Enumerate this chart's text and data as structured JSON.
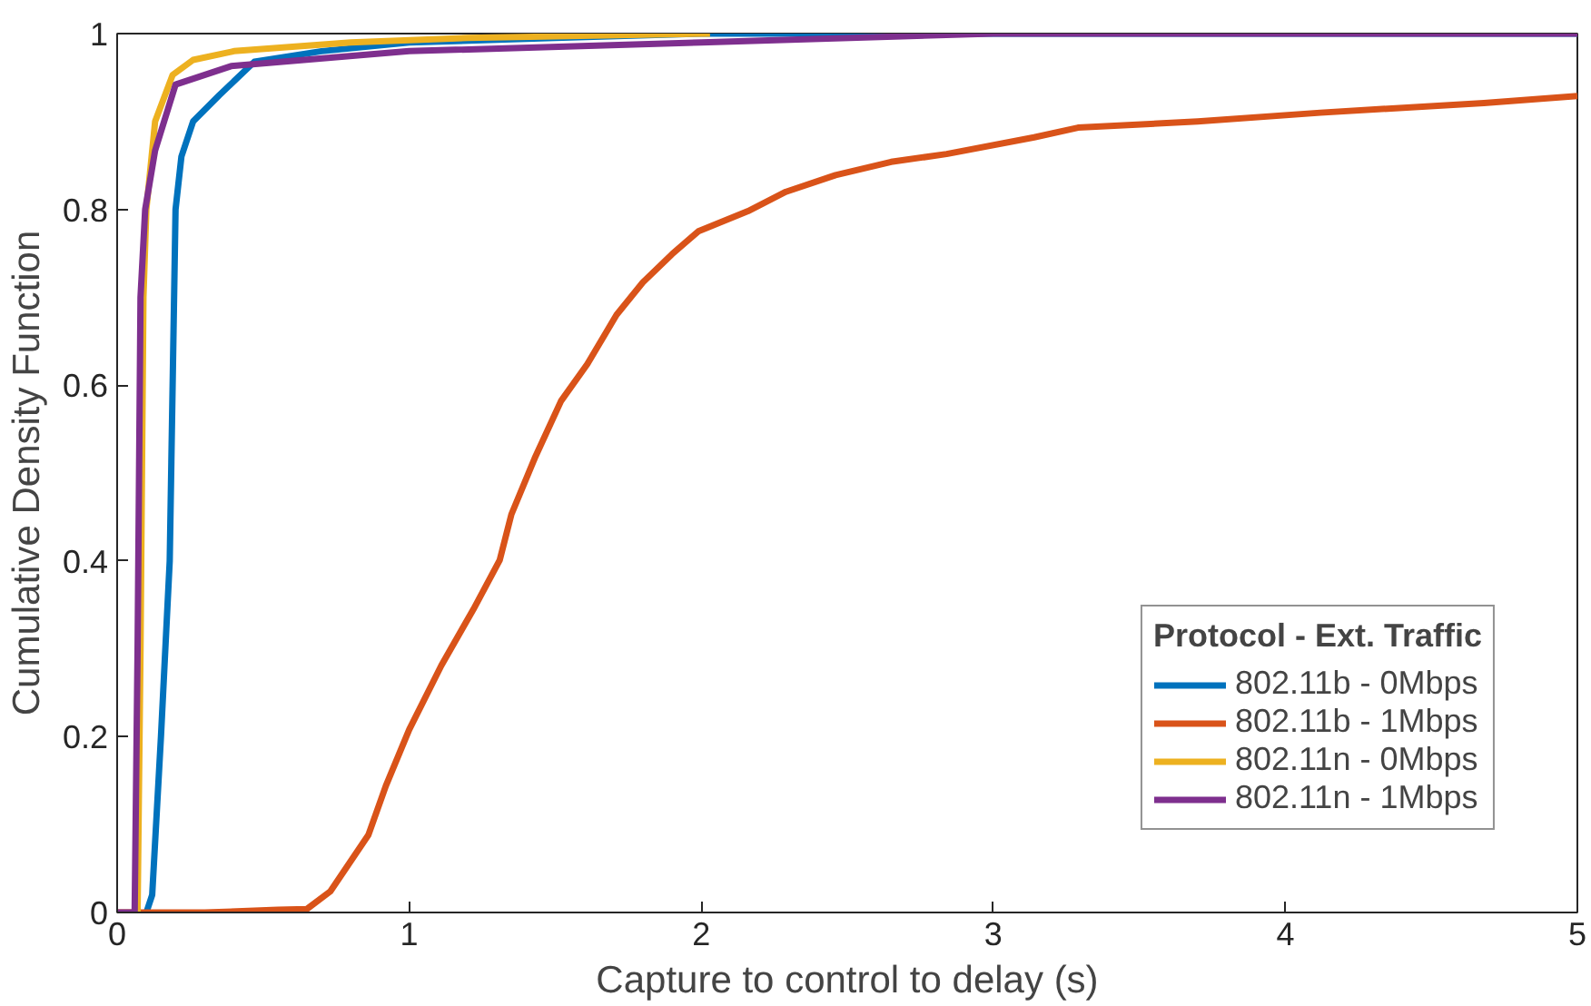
{
  "chart_data": {
    "type": "line",
    "xlabel": "Capture to control to delay (s)",
    "ylabel": "Cumulative Density Function",
    "legend_title": "Protocol - Ext. Traffic",
    "xlim": [
      0,
      5
    ],
    "ylim": [
      0,
      1
    ],
    "xticks": [
      0,
      1,
      2,
      3,
      4,
      5
    ],
    "yticks": [
      0,
      0.2,
      0.4,
      0.6,
      0.8,
      1
    ],
    "grid": false,
    "legend": "bottom right",
    "line_style": "solid",
    "series": [
      {
        "name": "802.11b - 0Mbps",
        "color": "#0072bd",
        "x": [
          0.1,
          0.12,
          0.15,
          0.18,
          0.2,
          0.22,
          0.26,
          0.35,
          0.47,
          0.7,
          1.0,
          1.5,
          2.0,
          3.0,
          5.0
        ],
        "values": [
          0,
          0.02,
          0.2,
          0.4,
          0.8,
          0.86,
          0.9,
          0.93,
          0.968,
          0.98,
          0.99,
          0.995,
          1.0,
          1.0,
          1.0
        ]
      },
      {
        "name": "802.11b - 1Mbps",
        "color": "#d95319",
        "x": [
          0,
          0.3,
          0.55,
          0.65,
          0.73,
          0.86,
          0.92,
          1.0,
          1.11,
          1.22,
          1.31,
          1.35,
          1.43,
          1.52,
          1.61,
          1.71,
          1.8,
          1.9,
          1.99,
          2.16,
          2.29,
          2.46,
          2.65,
          2.84,
          3.14,
          3.29,
          3.7,
          4.12,
          4.68,
          5.0
        ],
        "values": [
          0,
          0,
          0.003,
          0.004,
          0.024,
          0.088,
          0.144,
          0.208,
          0.281,
          0.345,
          0.401,
          0.453,
          0.517,
          0.582,
          0.624,
          0.68,
          0.717,
          0.749,
          0.775,
          0.798,
          0.82,
          0.839,
          0.854,
          0.863,
          0.882,
          0.893,
          0.9,
          0.91,
          0.921,
          0.929
        ]
      },
      {
        "name": "802.11n - 0Mbps",
        "color": "#edb120",
        "x": [
          0.07,
          0.08,
          0.09,
          0.1,
          0.13,
          0.19,
          0.26,
          0.4,
          0.8,
          1.2,
          2.03
        ],
        "values": [
          0,
          0.3,
          0.7,
          0.8,
          0.9,
          0.953,
          0.97,
          0.98,
          0.99,
          0.995,
          1.0
        ]
      },
      {
        "name": "802.11n - 1Mbps",
        "color": "#7e2f8e",
        "x": [
          0,
          0.06,
          0.07,
          0.08,
          0.096,
          0.13,
          0.2,
          0.39,
          1.0,
          2.0,
          3.0,
          5.0
        ],
        "values": [
          0,
          0,
          0.3,
          0.7,
          0.8,
          0.867,
          0.942,
          0.963,
          0.98,
          0.99,
          1.0,
          1.0
        ]
      }
    ]
  }
}
